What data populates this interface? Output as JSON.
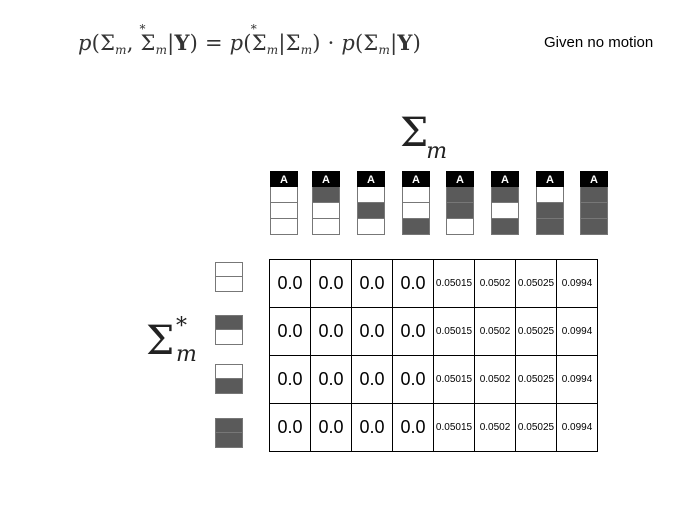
{
  "equation": {
    "p": "p",
    "sigma": "Σ",
    "m": "m",
    "star": "*",
    "y": "Y",
    "comma": ",",
    "bar": "|",
    "lparen": "(",
    "rparen": ")",
    "eq": "=",
    "dot": "·"
  },
  "note": "Given no motion",
  "sigma_top": {
    "symbol": "Σ",
    "sub": "m"
  },
  "sigma_left": {
    "symbol": "Σ",
    "sup": "*",
    "sub": "m"
  },
  "column_header_label": "A",
  "columns": [
    {
      "filled": [
        false,
        false,
        false
      ]
    },
    {
      "filled": [
        true,
        false,
        false
      ]
    },
    {
      "filled": [
        false,
        true,
        false
      ]
    },
    {
      "filled": [
        false,
        false,
        true
      ]
    },
    {
      "filled": [
        true,
        true,
        false
      ]
    },
    {
      "filled": [
        true,
        false,
        true
      ]
    },
    {
      "filled": [
        false,
        true,
        true
      ]
    },
    {
      "filled": [
        true,
        true,
        true
      ]
    }
  ],
  "row_icons": [
    {
      "filled": [
        false,
        false
      ]
    },
    {
      "filled": [
        true,
        false
      ]
    },
    {
      "filled": [
        false,
        true
      ]
    },
    {
      "filled": [
        true,
        true
      ]
    }
  ],
  "table": [
    [
      "0.0",
      "0.0",
      "0.0",
      "0.0",
      "0.05015",
      "0.0502",
      "0.05025",
      "0.0994"
    ],
    [
      "0.0",
      "0.0",
      "0.0",
      "0.0",
      "0.05015",
      "0.0502",
      "0.05025",
      "0.0994"
    ],
    [
      "0.0",
      "0.0",
      "0.0",
      "0.0",
      "0.05015",
      "0.0502",
      "0.05025",
      "0.0994"
    ],
    [
      "0.0",
      "0.0",
      "0.0",
      "0.0",
      "0.05015",
      "0.0502",
      "0.05025",
      "0.0994"
    ]
  ]
}
